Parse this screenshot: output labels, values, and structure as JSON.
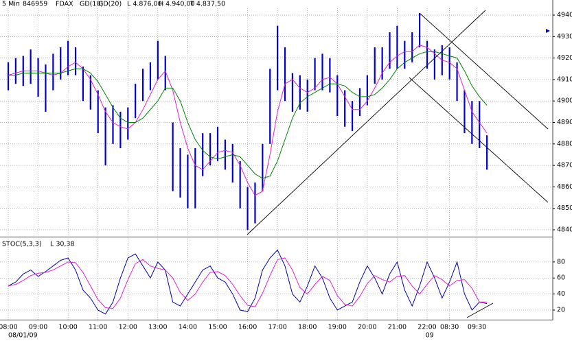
{
  "chart_data": [
    {
      "type": "hlbar",
      "interval": "5 Min",
      "symbol_id": "846959",
      "symbol": "FDAX",
      "stats": [
        "L 4.876,00",
        "H 4.940,00",
        "T 4.837,50"
      ],
      "x": [
        0,
        3,
        6,
        9,
        12,
        15,
        18,
        21,
        24,
        27,
        30,
        33,
        36,
        39,
        42,
        45,
        48,
        51,
        54,
        57,
        60,
        63,
        66,
        69,
        72,
        75,
        78,
        81,
        84,
        87,
        90,
        93,
        96,
        99,
        102,
        105,
        108,
        111,
        114,
        117,
        120,
        123,
        126,
        129,
        132,
        135,
        138,
        141,
        144,
        147,
        150,
        153,
        156,
        159,
        162,
        165,
        168,
        171,
        174,
        177,
        180,
        183,
        186,
        189,
        192
      ],
      "high": [
        4918,
        4920,
        4921,
        4924,
        4920,
        4917,
        4922,
        4925,
        4928,
        4925,
        4916,
        4912,
        4905,
        4897,
        4898,
        4895,
        4897,
        4908,
        4915,
        4918,
        4928,
        4921,
        4890,
        4878,
        4875,
        4878,
        4885,
        4885,
        4888,
        4882,
        4880,
        4872,
        4860,
        4862,
        4880,
        4915,
        4935,
        4925,
        4913,
        4912,
        4910,
        4920,
        4922,
        4920,
        4912,
        4905,
        4900,
        4906,
        4912,
        4925,
        4925,
        4932,
        4935,
        4928,
        4932,
        4941,
        4928,
        4924,
        4926,
        4925,
        4918,
        4905,
        4900,
        4900,
        4884
      ],
      "low": [
        4905,
        4908,
        4907,
        4908,
        4902,
        4895,
        4905,
        4910,
        4912,
        4912,
        4900,
        4896,
        4885,
        4870,
        4880,
        4878,
        4882,
        4892,
        4900,
        4905,
        4910,
        4905,
        4858,
        4855,
        4850,
        4850,
        4865,
        4870,
        4872,
        4868,
        4862,
        4850,
        4840,
        4843,
        4858,
        4880,
        4905,
        4900,
        4895,
        4896,
        4895,
        4905,
        4905,
        4904,
        4893,
        4888,
        4886,
        4893,
        4898,
        4908,
        4910,
        4915,
        4915,
        4915,
        4918,
        4925,
        4915,
        4910,
        4912,
        4910,
        4900,
        4885,
        4880,
        4878,
        4868
      ],
      "bar_color": "#0000cc",
      "series": [
        {
          "name": "GD(10)",
          "color": "#e020d0",
          "values": [
            4912,
            4913,
            4914,
            4914,
            4914,
            4913,
            4912,
            4913,
            4916,
            4918,
            4915,
            4910,
            4903,
            4895,
            4890,
            4888,
            4887,
            4890,
            4896,
            4903,
            4910,
            4914,
            4905,
            4890,
            4878,
            4870,
            4868,
            4872,
            4876,
            4877,
            4876,
            4870,
            4862,
            4856,
            4858,
            4875,
            4895,
            4908,
            4910,
            4906,
            4904,
            4906,
            4910,
            4911,
            4908,
            4902,
            4896,
            4896,
            4900,
            4906,
            4913,
            4918,
            4921,
            4923,
            4923,
            4926,
            4925,
            4922,
            4919,
            4918,
            4915,
            4905,
            4895,
            4890,
            4885
          ]
        },
        {
          "name": "GD(20)",
          "color": "#008000",
          "values": [
            4912,
            4912,
            4913,
            4913,
            4913,
            4913,
            4913,
            4913,
            4914,
            4915,
            4915,
            4913,
            4909,
            4903,
            4897,
            4892,
            4890,
            4890,
            4892,
            4896,
            4900,
            4906,
            4906,
            4900,
            4890,
            4882,
            4877,
            4874,
            4873,
            4874,
            4875,
            4874,
            4870,
            4866,
            4864,
            4865,
            4872,
            4882,
            4892,
            4899,
            4902,
            4904,
            4906,
            4908,
            4908,
            4907,
            4904,
            4902,
            4902,
            4903,
            4906,
            4910,
            4915,
            4918,
            4920,
            4922,
            4923,
            4923,
            4922,
            4921,
            4920,
            4914,
            4907,
            4902,
            4898
          ]
        }
      ],
      "xlim": [
        -3.3,
        218.4
      ],
      "ylim": [
        4836.8,
        4943.2
      ],
      "yticks": [
        4840,
        4850,
        4860,
        4870,
        4880,
        4890,
        4900,
        4910,
        4920,
        4930,
        4940
      ],
      "xticks": [
        {
          "value": 0,
          "label": "08:00"
        },
        {
          "value": 12,
          "label": "09:00"
        },
        {
          "value": 24,
          "label": "10:00"
        },
        {
          "value": 36,
          "label": "11:00"
        },
        {
          "value": 48,
          "label": "12:00"
        },
        {
          "value": 60,
          "label": "13:00"
        },
        {
          "value": 72,
          "label": "14:00"
        },
        {
          "value": 84,
          "label": "15:00"
        },
        {
          "value": 96,
          "label": "16:00"
        },
        {
          "value": 108,
          "label": "17:00"
        },
        {
          "value": 120,
          "label": "18:00"
        },
        {
          "value": 132,
          "label": "19:00"
        },
        {
          "value": 144,
          "label": "20:00"
        },
        {
          "value": 156,
          "label": "21:00"
        },
        {
          "value": 168,
          "label": "22:00"
        },
        {
          "value": 177,
          "label": "08:30"
        },
        {
          "value": 188,
          "label": "09:30"
        }
      ],
      "date_labels": [
        {
          "value": 0,
          "label": "08/01/09"
        },
        {
          "value": 169,
          "label": "09"
        }
      ],
      "grid": true
    },
    {
      "type": "line",
      "title": "STOC(5,3,3)",
      "stats": "L 30,38",
      "x": [
        0,
        3,
        6,
        9,
        12,
        15,
        18,
        21,
        24,
        27,
        30,
        33,
        36,
        39,
        42,
        45,
        48,
        51,
        54,
        57,
        60,
        63,
        66,
        69,
        72,
        75,
        78,
        81,
        84,
        87,
        90,
        93,
        96,
        99,
        102,
        105,
        108,
        111,
        114,
        117,
        120,
        123,
        126,
        129,
        132,
        135,
        138,
        141,
        144,
        147,
        150,
        153,
        156,
        159,
        162,
        165,
        168,
        171,
        174,
        177,
        180,
        183,
        186,
        189,
        192
      ],
      "series": [
        {
          "color": "#0000aa",
          "values": [
            50,
            55,
            65,
            70,
            62,
            68,
            75,
            82,
            85,
            70,
            45,
            35,
            20,
            15,
            30,
            60,
            85,
            90,
            75,
            60,
            80,
            70,
            30,
            25,
            40,
            55,
            70,
            75,
            60,
            55,
            40,
            20,
            18,
            35,
            70,
            85,
            95,
            75,
            40,
            30,
            50,
            75,
            60,
            35,
            20,
            25,
            30,
            55,
            75,
            60,
            40,
            65,
            80,
            45,
            25,
            50,
            80,
            60,
            35,
            55,
            80,
            40,
            20,
            30,
            28
          ]
        },
        {
          "color": "#e020d0",
          "values": [
            50,
            52,
            57,
            63,
            66,
            67,
            70,
            75,
            80,
            79,
            67,
            50,
            33,
            23,
            22,
            35,
            58,
            78,
            83,
            75,
            72,
            70,
            60,
            42,
            32,
            40,
            55,
            67,
            68,
            63,
            52,
            38,
            26,
            24,
            41,
            63,
            83,
            85,
            70,
            48,
            40,
            52,
            62,
            57,
            38,
            27,
            25,
            37,
            53,
            63,
            58,
            55,
            62,
            63,
            50,
            40,
            52,
            63,
            58,
            50,
            57,
            58,
            47,
            30,
            30
          ]
        }
      ],
      "xlim": [
        -3.3,
        218.4
      ],
      "ylim": [
        8,
        109
      ],
      "yticks": [
        20,
        40,
        60,
        80
      ],
      "grid": true
    }
  ]
}
